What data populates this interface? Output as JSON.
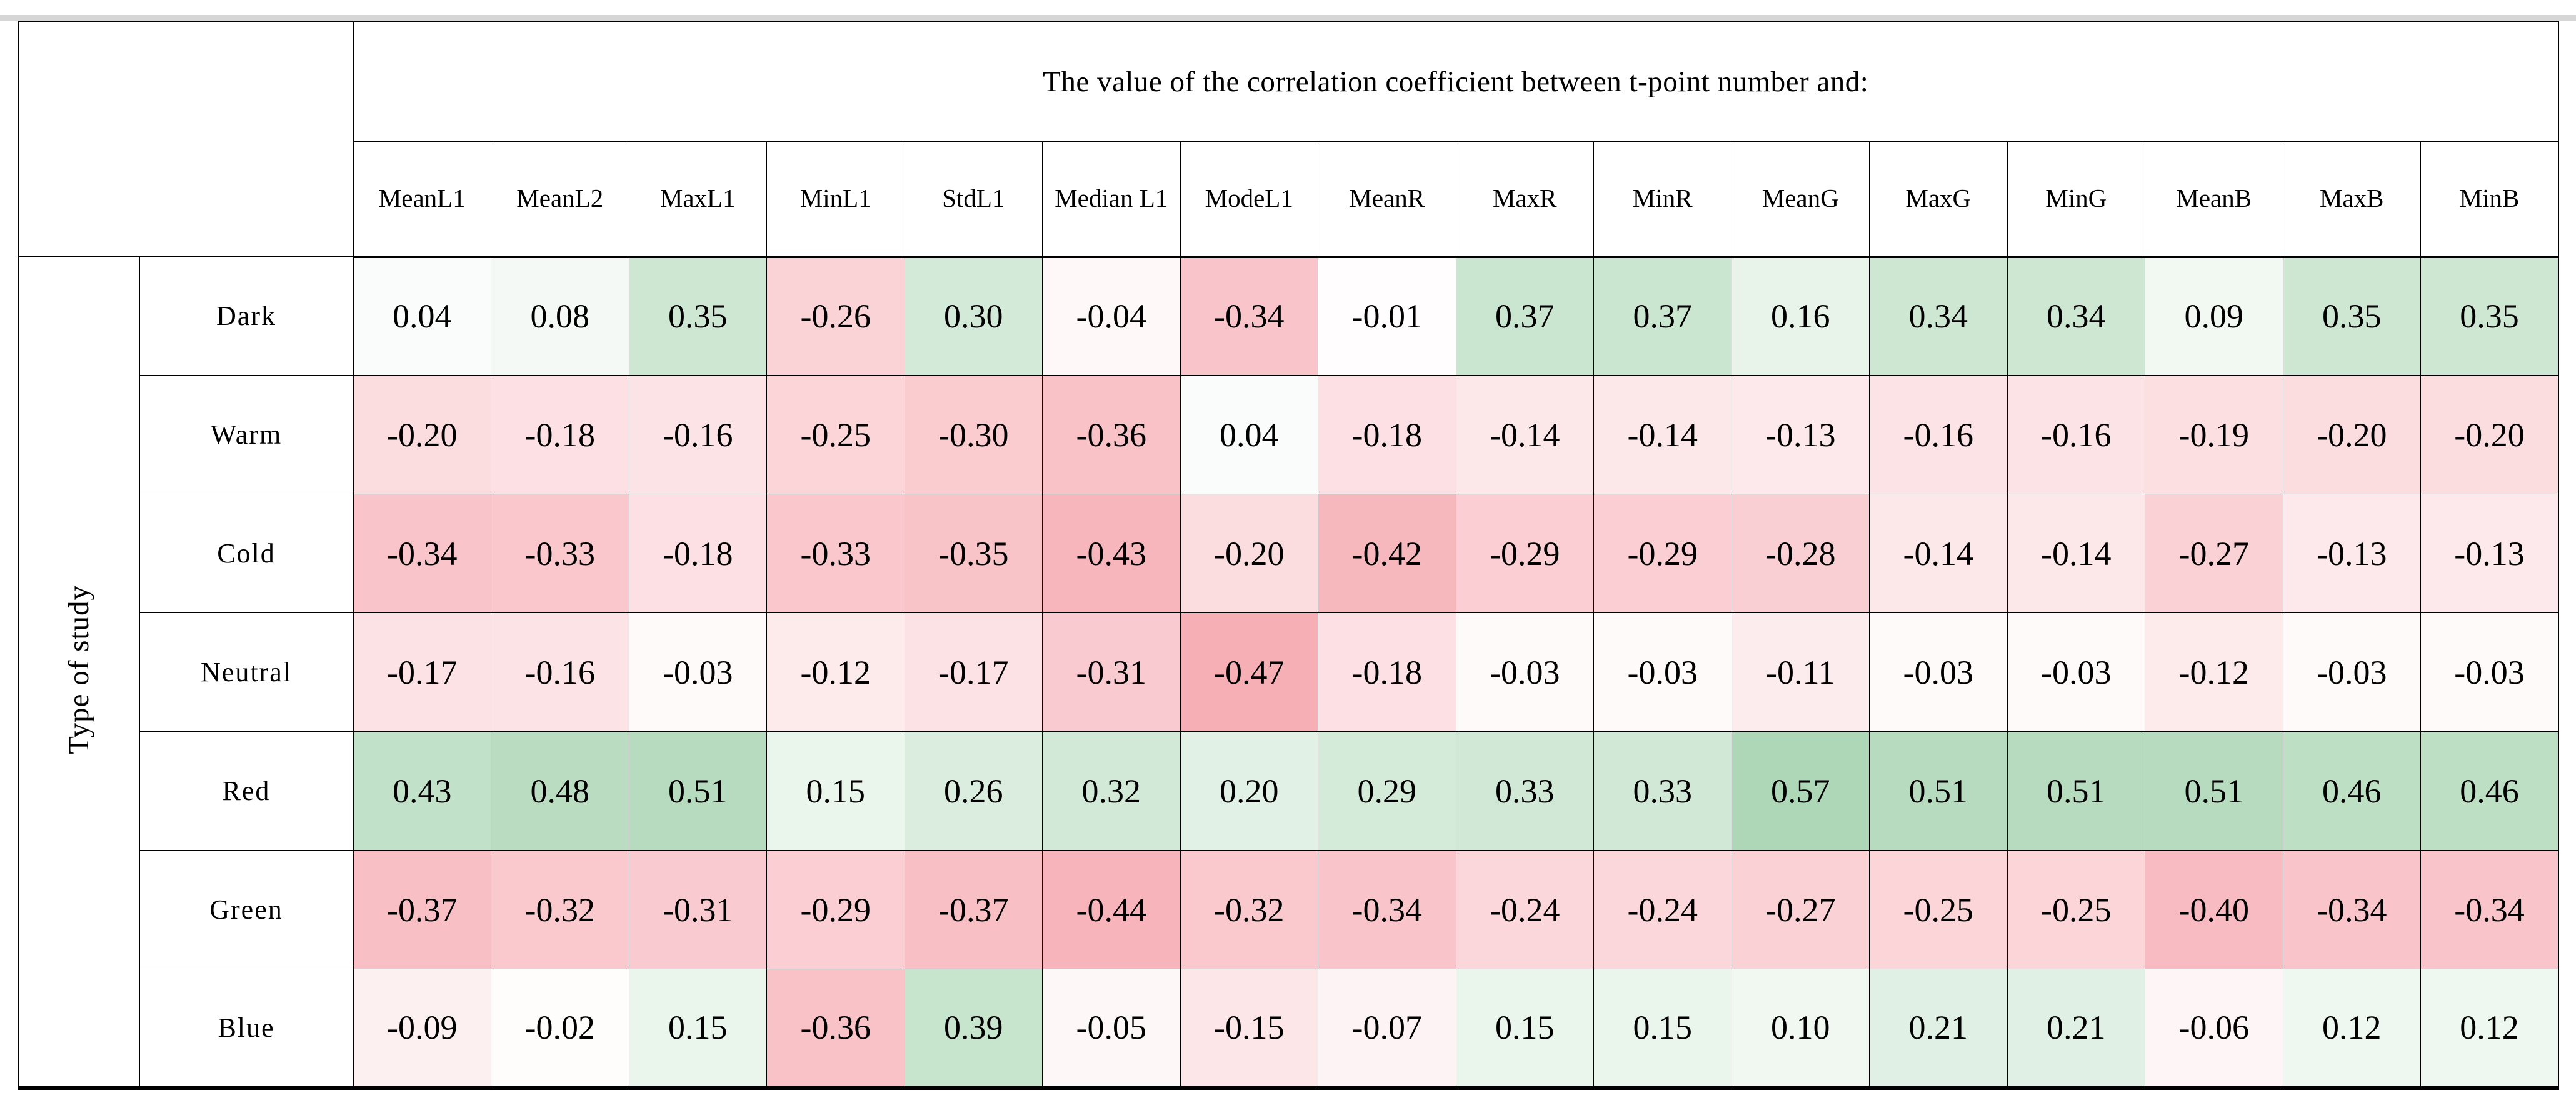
{
  "chart_data": {
    "type": "heatmap",
    "title": "The value of the correlation coefficient between t-point number and:",
    "row_axis_label": "Type of study",
    "columns": [
      "MeanL1",
      "MeanL2",
      "MaxL1",
      "MinL1",
      "StdL1",
      "Median L1",
      "ModeL1",
      "MeanR",
      "MaxR",
      "MinR",
      "MeanG",
      "MaxG",
      "MinG",
      "MeanB",
      "MaxB",
      "MinB"
    ],
    "rows": [
      "Dark",
      "Warm",
      "Cold",
      "Neutral",
      "Red",
      "Green",
      "Blue"
    ],
    "values": [
      [
        0.04,
        0.08,
        0.35,
        -0.26,
        0.3,
        -0.04,
        -0.34,
        -0.01,
        0.37,
        0.37,
        0.16,
        0.34,
        0.34,
        0.09,
        0.35,
        0.35
      ],
      [
        -0.2,
        -0.18,
        -0.16,
        -0.25,
        -0.3,
        -0.36,
        0.04,
        -0.18,
        -0.14,
        -0.14,
        -0.13,
        -0.16,
        -0.16,
        -0.19,
        -0.2,
        -0.2
      ],
      [
        -0.34,
        -0.33,
        -0.18,
        -0.33,
        -0.35,
        -0.43,
        -0.2,
        -0.42,
        -0.29,
        -0.29,
        -0.28,
        -0.14,
        -0.14,
        -0.27,
        -0.13,
        -0.13
      ],
      [
        -0.17,
        -0.16,
        -0.03,
        -0.12,
        -0.17,
        -0.31,
        -0.47,
        -0.18,
        -0.03,
        -0.03,
        -0.11,
        -0.03,
        -0.03,
        -0.12,
        -0.03,
        -0.03
      ],
      [
        0.43,
        0.48,
        0.51,
        0.15,
        0.26,
        0.32,
        0.2,
        0.29,
        0.33,
        0.33,
        0.57,
        0.51,
        0.51,
        0.51,
        0.46,
        0.46
      ],
      [
        -0.37,
        -0.32,
        -0.31,
        -0.29,
        -0.37,
        -0.44,
        -0.32,
        -0.34,
        -0.24,
        -0.24,
        -0.27,
        -0.25,
        -0.25,
        -0.4,
        -0.34,
        -0.34
      ],
      [
        -0.09,
        -0.02,
        0.15,
        -0.36,
        0.39,
        -0.05,
        -0.15,
        -0.07,
        0.15,
        0.15,
        0.1,
        0.21,
        0.21,
        -0.06,
        0.12,
        0.12
      ]
    ],
    "colormap": {
      "zero_color": "#ffffff",
      "positive_color": "#a9d5b2",
      "negative_color": "#f6aab1",
      "positive_domain": 0.6,
      "negative_domain": 0.5
    },
    "layout": {
      "grid": "on",
      "value_precision": 2
    }
  }
}
